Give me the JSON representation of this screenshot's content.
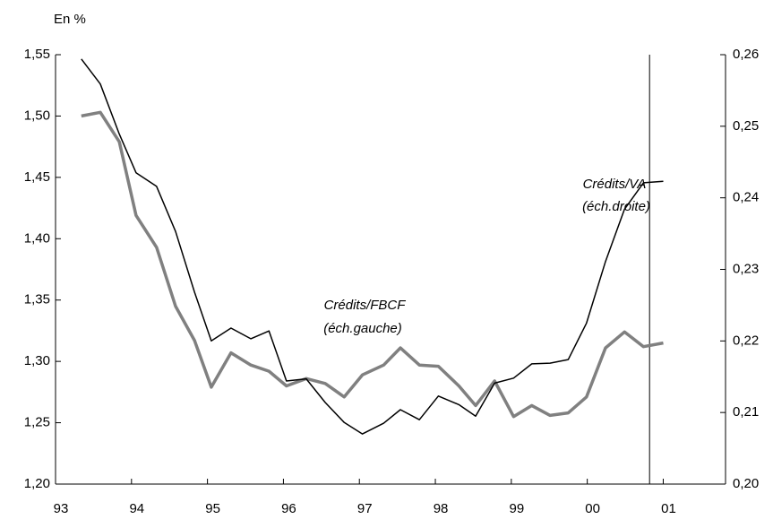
{
  "chart_data": {
    "type": "line",
    "unit_label": "En %",
    "annotations": [
      "Crédits/VA",
      "(éch.droite)",
      "Crédits/FBCF",
      "(éch.gauche)"
    ],
    "x": [
      1993.34,
      1993.59,
      1993.84,
      1994.06,
      1994.33,
      1994.58,
      1994.83,
      1995.05,
      1995.31,
      1995.57,
      1995.81,
      1996.04,
      1996.3,
      1996.55,
      1996.8,
      1997.04,
      1997.32,
      1997.54,
      1997.79,
      1998.04,
      1998.31,
      1998.53,
      1998.78,
      1999.03,
      1999.27,
      1999.51,
      1999.75,
      1999.99,
      2000.24,
      2000.49,
      2000.74,
      2001.0
    ],
    "series": [
      {
        "name": "Crédits/FBCF",
        "color": "#808080",
        "axis": "y",
        "values": [
          1.5,
          1.503,
          1.479,
          1.419,
          1.393,
          1.345,
          1.317,
          1.279,
          1.307,
          1.297,
          1.292,
          1.28,
          1.286,
          1.282,
          1.271,
          1.289,
          1.297,
          1.311,
          1.297,
          1.296,
          1.28,
          1.264,
          1.284,
          1.255,
          1.264,
          1.256,
          1.258,
          1.271,
          1.311,
          1.324,
          1.312,
          1.315
        ]
      },
      {
        "name": "Crédits/VA",
        "color": "#000000",
        "axis": "y2",
        "values": [
          0.2594,
          0.2559,
          0.2489,
          0.2435,
          0.2416,
          0.2353,
          0.2268,
          0.22,
          0.2218,
          0.2203,
          0.2214,
          0.2144,
          0.2147,
          0.2114,
          0.2086,
          0.207,
          0.2085,
          0.2104,
          0.209,
          0.2123,
          0.2111,
          0.2095,
          0.2141,
          0.2148,
          0.2168,
          0.2169,
          0.2174,
          0.2225,
          0.2311,
          0.2384,
          0.2421,
          0.2423
        ]
      }
    ],
    "xlim": [
      1993,
      2001.82
    ],
    "xticks": [
      {
        "value": 1993,
        "label": "93"
      },
      {
        "value": 1994,
        "label": "94"
      },
      {
        "value": 1995,
        "label": "95"
      },
      {
        "value": 1996,
        "label": "96"
      },
      {
        "value": 1997,
        "label": "97"
      },
      {
        "value": 1998,
        "label": "98"
      },
      {
        "value": 1999,
        "label": "99"
      },
      {
        "value": 2000,
        "label": "00"
      },
      {
        "value": 2001,
        "label": "01"
      }
    ],
    "ylim": [
      1.2,
      1.55
    ],
    "yticks": [
      {
        "value": 1.2,
        "label": "1,20"
      },
      {
        "value": 1.25,
        "label": "1,25"
      },
      {
        "value": 1.3,
        "label": "1,30"
      },
      {
        "value": 1.35,
        "label": "1,35"
      },
      {
        "value": 1.4,
        "label": "1,40"
      },
      {
        "value": 1.45,
        "label": "1,45"
      },
      {
        "value": 1.5,
        "label": "1,50"
      },
      {
        "value": 1.55,
        "label": "1,55"
      }
    ],
    "y2lim": [
      0.2,
      0.26
    ],
    "y2ticks": [
      {
        "value": 0.2,
        "label": "0,20"
      },
      {
        "value": 0.21,
        "label": "0,21"
      },
      {
        "value": 0.22,
        "label": "0,22"
      },
      {
        "value": 0.23,
        "label": "0,23"
      },
      {
        "value": 0.24,
        "label": "0,24"
      },
      {
        "value": 0.25,
        "label": "0,25"
      },
      {
        "value": 0.26,
        "label": "0,26"
      }
    ],
    "vline": 2000.82,
    "grid": false
  }
}
